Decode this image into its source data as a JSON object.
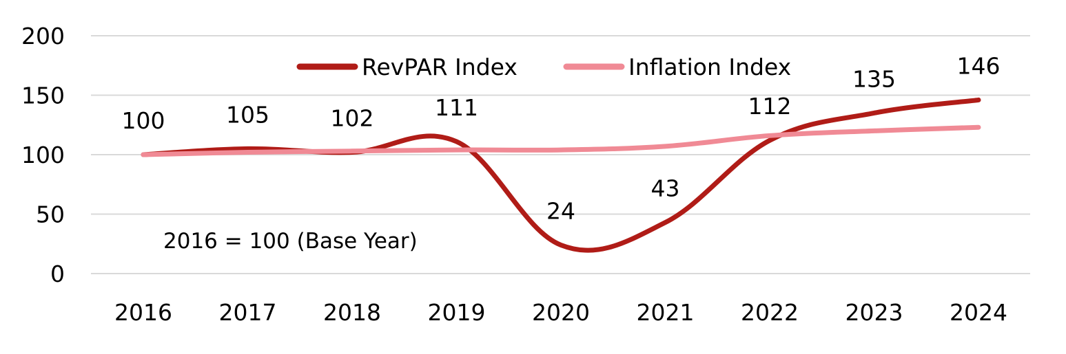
{
  "chart_data": {
    "type": "line",
    "categories": [
      "2016",
      "2017",
      "2018",
      "2019",
      "2020",
      "2021",
      "2022",
      "2023",
      "2024"
    ],
    "ylim": [
      0,
      200
    ],
    "yticks": [
      "0",
      "50",
      "100",
      "150",
      "200"
    ],
    "grid": true,
    "legend_position": "top-center",
    "annotation": "2016 = 100 (Base Year)",
    "series": [
      {
        "name": "RevPAR Index",
        "color": "#b01c17",
        "values": [
          100,
          105,
          102,
          111,
          24,
          43,
          112,
          135,
          146
        ],
        "data_labels": [
          "100",
          "105",
          "102",
          "111",
          "24",
          "43",
          "112",
          "135",
          "146"
        ]
      },
      {
        "name": "Inflation Index",
        "color": "#f08a95",
        "values": [
          100,
          102,
          103,
          104,
          104,
          107,
          116,
          120,
          123
        ]
      }
    ]
  }
}
